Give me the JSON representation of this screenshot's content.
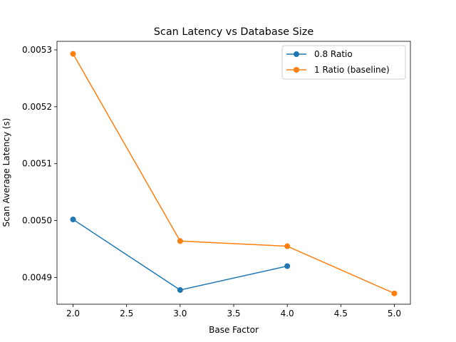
{
  "chart_data": {
    "type": "line",
    "title": "Scan Latency vs Database Size",
    "xlabel": "Base Factor",
    "ylabel": "Scan Average Latency (s)",
    "xlim": [
      1.85,
      5.15
    ],
    "ylim": [
      0.004853,
      0.005315
    ],
    "xticks": [
      2.0,
      2.5,
      3.0,
      3.5,
      4.0,
      4.5,
      5.0
    ],
    "xtick_labels": [
      "2.0",
      "2.5",
      "3.0",
      "3.5",
      "4.0",
      "4.5",
      "5.0"
    ],
    "yticks": [
      0.0049,
      0.005,
      0.0051,
      0.0052,
      0.0053
    ],
    "ytick_labels": [
      "0.0049",
      "0.0050",
      "0.0051",
      "0.0052",
      "0.0053"
    ],
    "grid": false,
    "legend_position": "upper right",
    "series": [
      {
        "name": "0.8 Ratio",
        "color": "#1f77b4",
        "marker": "circle",
        "x": [
          2,
          3,
          4
        ],
        "y": [
          0.005002,
          0.004878,
          0.00492
        ]
      },
      {
        "name": "1 Ratio (baseline)",
        "color": "#ff7f0e",
        "marker": "circle",
        "x": [
          2,
          3,
          4,
          5
        ],
        "y": [
          0.005293,
          0.004964,
          0.004955,
          0.004872
        ]
      }
    ]
  }
}
